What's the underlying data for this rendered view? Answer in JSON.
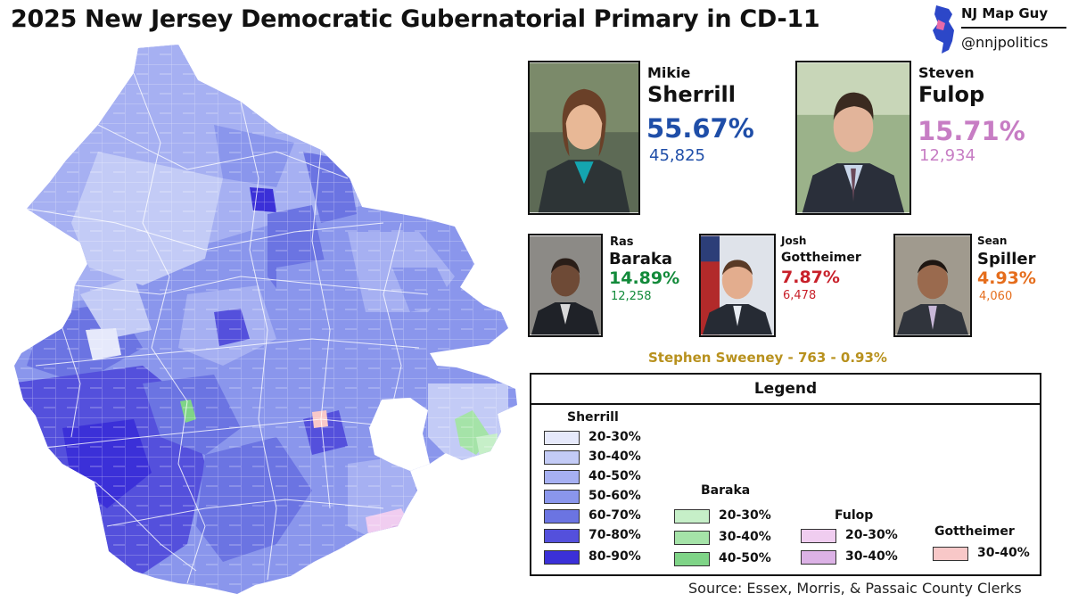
{
  "title": "2025 New Jersey Democratic Gubernatorial Primary in CD-11",
  "brand": {
    "name": "NJ Map Guy",
    "handle": "@nnjpolitics"
  },
  "candidates": [
    {
      "id": "sherrill",
      "first": "Mikie",
      "last": "Sherrill",
      "pct": "55.67%",
      "votes": "45,825",
      "color": "#1f4ea8"
    },
    {
      "id": "fulop",
      "first": "Steven",
      "last": "Fulop",
      "pct": "15.71%",
      "votes": "12,934",
      "color": "#c77dc4"
    },
    {
      "id": "baraka",
      "first": "Ras",
      "last": "Baraka",
      "pct": "14.89%",
      "votes": "12,258",
      "color": "#128a3a"
    },
    {
      "id": "gottheimer",
      "first": "Josh",
      "last": "Gottheimer",
      "pct": "7.87%",
      "votes": "6,478",
      "color": "#c8202a"
    },
    {
      "id": "spiller",
      "first": "Sean",
      "last": "Spiller",
      "pct": "4.93%",
      "votes": "4,060",
      "color": "#e56d1c"
    }
  ],
  "minor_candidate": "Stephen Sweeney - 763 - 0.93%",
  "legend": {
    "title": "Legend",
    "groups": [
      {
        "name": "Sherrill",
        "items": [
          {
            "label": "20-30%",
            "color": "#e6e9fb"
          },
          {
            "label": "30-40%",
            "color": "#c3cbf6"
          },
          {
            "label": "40-50%",
            "color": "#a6b0f2"
          },
          {
            "label": "50-60%",
            "color": "#8a96ec"
          },
          {
            "label": "60-70%",
            "color": "#6b74e2"
          },
          {
            "label": "70-80%",
            "color": "#5450dc"
          },
          {
            "label": "80-90%",
            "color": "#3b30d8"
          }
        ]
      },
      {
        "name": "Baraka",
        "items": [
          {
            "label": "20-30%",
            "color": "#c6efc8"
          },
          {
            "label": "30-40%",
            "color": "#a5e3a8"
          },
          {
            "label": "40-50%",
            "color": "#7fd487"
          }
        ]
      },
      {
        "name": "Fulop",
        "items": [
          {
            "label": "20-30%",
            "color": "#f0cdf0"
          },
          {
            "label": "30-40%",
            "color": "#dcb2e6"
          }
        ]
      },
      {
        "name": "Gottheimer",
        "items": [
          {
            "label": "30-40%",
            "color": "#f8c8c8"
          }
        ]
      }
    ]
  },
  "source": "Source: Essex, Morris, & Passaic County Clerks"
}
